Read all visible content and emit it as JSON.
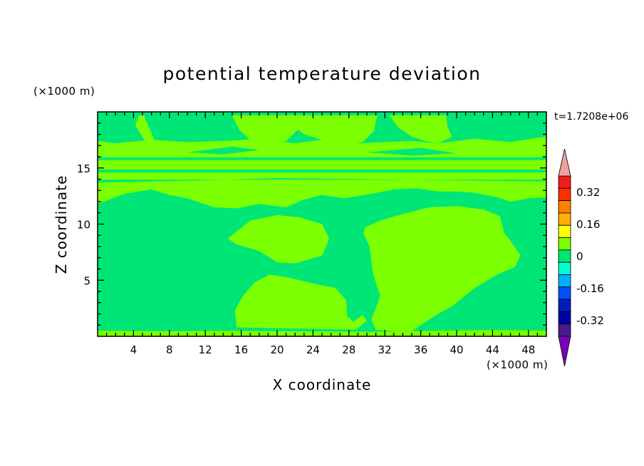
{
  "chart_data": {
    "type": "heatmap",
    "title": "potential temperature deviation",
    "xlabel": "X coordinate",
    "ylabel": "Z coordinate",
    "x_unit": "(×1000 m)",
    "y_unit": "(×1000 m)",
    "time_label": "t=1.7208e+06",
    "xlim": [
      0,
      50
    ],
    "ylim": [
      0,
      20
    ],
    "x_ticks": [
      4,
      8,
      12,
      16,
      20,
      24,
      28,
      32,
      36,
      40,
      44,
      48
    ],
    "y_ticks": [
      5,
      10,
      15
    ],
    "field": {
      "background_level": "-0.04..0",
      "positive_level": "0..0.04",
      "regions_positive": [
        {
          "name": "lower-left-bump",
          "outline": [
            [
              14.5,
              8.7
            ],
            [
              17,
              10.3
            ],
            [
              20,
              10.8
            ],
            [
              22.5,
              10.6
            ],
            [
              25,
              10
            ],
            [
              25.8,
              8.7
            ],
            [
              25,
              7.2
            ],
            [
              22,
              6.5
            ],
            [
              20,
              6.6
            ],
            [
              18,
              7.6
            ],
            [
              15.5,
              8.2
            ]
          ]
        },
        {
          "name": "low-plume",
          "outline": [
            [
              15.5,
              0.8
            ],
            [
              15.3,
              2.3
            ],
            [
              16.2,
              3.6
            ],
            [
              17.5,
              4.8
            ],
            [
              19.2,
              5.5
            ],
            [
              21.5,
              5.2
            ],
            [
              24,
              4.7
            ],
            [
              26.5,
              4.3
            ],
            [
              27.7,
              3.2
            ],
            [
              27.8,
              1.8
            ],
            [
              28.5,
              1.3
            ],
            [
              29.5,
              1.9
            ],
            [
              30,
              1.4
            ],
            [
              28.8,
              0.6
            ]
          ]
        },
        {
          "name": "right-plume",
          "outline": [
            [
              29.8,
              9.7
            ],
            [
              31.5,
              10.3
            ],
            [
              34,
              10.9
            ],
            [
              37,
              11.5
            ],
            [
              40,
              11.6
            ],
            [
              43,
              11.3
            ],
            [
              44.8,
              10.7
            ],
            [
              45.3,
              9.2
            ],
            [
              46,
              8.5
            ],
            [
              47.1,
              7.2
            ],
            [
              46.5,
              6.2
            ],
            [
              44.5,
              5.5
            ],
            [
              42,
              4.3
            ],
            [
              39.5,
              2.7
            ],
            [
              37.5,
              1.8
            ],
            [
              36,
              1
            ],
            [
              35,
              0.45
            ],
            [
              33,
              0.45
            ],
            [
              31,
              0.6
            ],
            [
              30.5,
              1.5
            ],
            [
              31,
              2.5
            ],
            [
              31.5,
              3.6
            ],
            [
              30.7,
              5.5
            ],
            [
              30.3,
              8
            ],
            [
              29.6,
              9.2
            ]
          ]
        },
        {
          "name": "upper-band",
          "outline": [
            [
              0,
              11.8
            ],
            [
              3,
              12.7
            ],
            [
              6,
              13.1
            ],
            [
              8,
              12.6
            ],
            [
              10,
              12.3
            ],
            [
              13,
              11.5
            ],
            [
              15.5,
              11.4
            ],
            [
              18,
              11.8
            ],
            [
              21,
              11.5
            ],
            [
              23,
              12.2
            ],
            [
              25,
              12.6
            ],
            [
              27.5,
              12.3
            ],
            [
              30.5,
              12.7
            ],
            [
              33,
              13.1
            ],
            [
              35.5,
              13.2
            ],
            [
              38,
              12.9
            ],
            [
              40,
              12.9
            ],
            [
              42,
              12.8
            ],
            [
              44.5,
              12.4
            ],
            [
              46,
              12
            ],
            [
              48,
              12.3
            ],
            [
              50,
              12.4
            ],
            [
              50,
              17.8
            ],
            [
              46,
              17.3
            ],
            [
              42,
              17.6
            ],
            [
              38,
              17.2
            ],
            [
              35,
              17.4
            ],
            [
              32,
              17.3
            ],
            [
              29,
              17.2
            ],
            [
              26,
              17.6
            ],
            [
              22,
              17.2
            ],
            [
              18,
              17.6
            ],
            [
              14,
              17.4
            ],
            [
              10,
              17.3
            ],
            [
              6,
              17.5
            ],
            [
              2,
              17.2
            ],
            [
              0,
              17.4
            ]
          ]
        },
        {
          "name": "top-left-plume",
          "outline": [
            [
              4.2,
              18.8
            ],
            [
              5.2,
              17.5
            ],
            [
              6.5,
              17.2
            ],
            [
              5.4,
              19.2
            ],
            [
              5.2,
              19.7
            ],
            [
              4.6,
              19.7
            ]
          ]
        },
        {
          "name": "top-mid-plume",
          "outline": [
            [
              15,
              19.7
            ],
            [
              15.8,
              18.4
            ],
            [
              17,
              17.5
            ],
            [
              19,
              17.1
            ],
            [
              21,
              17.4
            ],
            [
              22,
              18.2
            ],
            [
              23,
              18.8
            ],
            [
              23.4,
              19.7
            ]
          ]
        },
        {
          "name": "top-center-plume",
          "outline": [
            [
              21,
              19.7
            ],
            [
              21.5,
              18.9
            ],
            [
              23,
              18
            ],
            [
              25,
              17.5
            ],
            [
              27.5,
              17
            ],
            [
              29.5,
              17.3
            ],
            [
              30.8,
              18.3
            ],
            [
              31,
              19.2
            ],
            [
              31.2,
              19.7
            ]
          ]
        },
        {
          "name": "top-right-plume",
          "outline": [
            [
              32.5,
              19.7
            ],
            [
              33.5,
              18.6
            ],
            [
              35,
              17.8
            ],
            [
              36.5,
              17.4
            ],
            [
              38,
              17.2
            ],
            [
              39.5,
              17.8
            ],
            [
              39,
              18.6
            ],
            [
              38.8,
              19.7
            ]
          ]
        },
        {
          "name": "bottom-strip",
          "outline": [
            [
              0,
              0
            ],
            [
              50,
              0
            ],
            [
              50,
              0.5
            ],
            [
              44,
              0.55
            ],
            [
              38,
              0.5
            ],
            [
              30,
              0.4
            ],
            [
              22,
              0.45
            ],
            [
              14,
              0.5
            ],
            [
              8,
              0.45
            ],
            [
              0,
              0.5
            ]
          ]
        }
      ],
      "regions_negative": [
        {
          "name": "stratosphere-gap-1",
          "outline": [
            [
              0,
              14.6
            ],
            [
              50,
              14.6
            ],
            [
              50,
              14.85
            ],
            [
              0,
              14.85
            ]
          ]
        },
        {
          "name": "stratosphere-gap-2",
          "outline": [
            [
              0,
              15.7
            ],
            [
              50,
              15.7
            ],
            [
              50,
              15.95
            ],
            [
              0,
              15.95
            ]
          ]
        },
        {
          "name": "stratosphere-gap-3",
          "outline": [
            [
              0,
              13.7
            ],
            [
              12,
              13.9
            ],
            [
              20,
              14.1
            ],
            [
              30,
              14
            ],
            [
              40,
              13.9
            ],
            [
              50,
              13.8
            ],
            [
              50,
              13.95
            ],
            [
              0,
              13.95
            ]
          ]
        },
        {
          "name": "upper-pocket-1",
          "outline": [
            [
              10,
              16.4
            ],
            [
              14,
              16.2
            ],
            [
              18,
              16.6
            ],
            [
              15,
              16.9
            ]
          ]
        },
        {
          "name": "upper-pocket-2",
          "outline": [
            [
              30,
              16.4
            ],
            [
              35,
              16.1
            ],
            [
              40,
              16.3
            ],
            [
              36,
              16.8
            ]
          ]
        }
      ]
    },
    "colorbar": {
      "levels": [
        "-0.32",
        "-0.16",
        "0",
        "0.16",
        "0.32"
      ],
      "colors": [
        "#7a00b4",
        "#4a1a8a",
        "#0000a6",
        "#001cbc",
        "#0050ff",
        "#00b0ff",
        "#00ffd2",
        "#00e676",
        "#7cff00",
        "#ffff00",
        "#ffb000",
        "#ff8000",
        "#ff3000",
        "#ef1d1d",
        "#f0a0a0"
      ]
    }
  }
}
